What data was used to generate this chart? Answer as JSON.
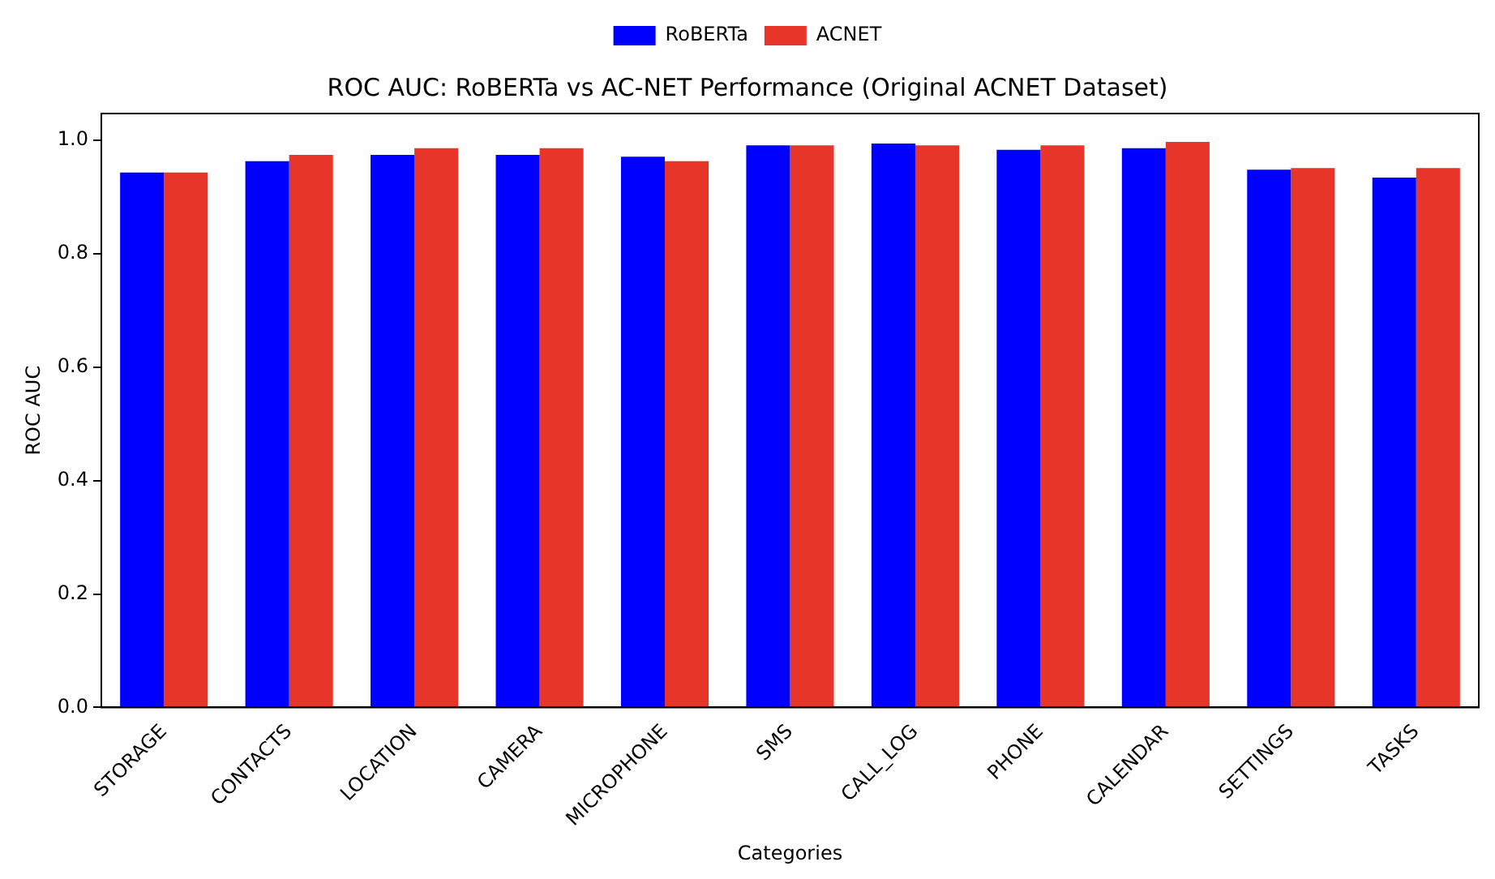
{
  "chart_data": {
    "type": "bar",
    "title": "ROC AUC: RoBERTa vs AC-NET Performance (Original ACNET Dataset)",
    "xlabel": "Categories",
    "ylabel": "ROC AUC",
    "categories": [
      "STORAGE",
      "CONTACTS",
      "LOCATION",
      "CAMERA",
      "MICROPHONE",
      "SMS",
      "CALL_LOG",
      "PHONE",
      "CALENDAR",
      "SETTINGS",
      "TASKS"
    ],
    "series": [
      {
        "name": "RoBERTa",
        "color": "#0000ff",
        "values": [
          0.943,
          0.963,
          0.974,
          0.974,
          0.971,
          0.991,
          0.994,
          0.983,
          0.986,
          0.948,
          0.934
        ]
      },
      {
        "name": "ACNET",
        "color": "#e8352a",
        "values": [
          0.943,
          0.974,
          0.986,
          0.986,
          0.963,
          0.991,
          0.991,
          0.991,
          0.997,
          0.951,
          0.951
        ]
      }
    ],
    "ylim": [
      0,
      1.047
    ],
    "yticks": [
      {
        "value": 0,
        "label": "0.0"
      },
      {
        "value": 0.2,
        "label": "0.2"
      },
      {
        "value": 0.4,
        "label": "0.4"
      },
      {
        "value": 0.6,
        "label": "0.6"
      },
      {
        "value": 0.8,
        "label": "0.8"
      },
      {
        "value": 1,
        "label": "1.0"
      }
    ],
    "grid": false,
    "legend": "top"
  }
}
